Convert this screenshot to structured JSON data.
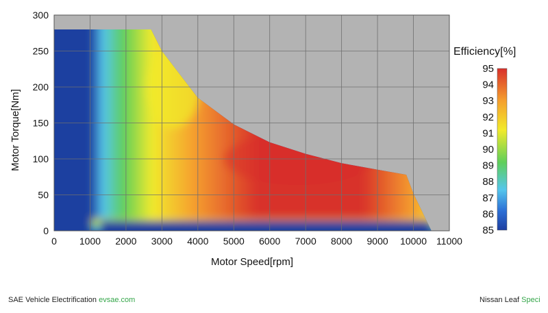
{
  "chart_data": {
    "type": "heatmap",
    "xlabel": "Motor Speed[rpm]",
    "ylabel": "Motor Torque[Nm]",
    "xlim": [
      0,
      11000
    ],
    "ylim": [
      0,
      300
    ],
    "x_ticks": [
      0,
      1000,
      2000,
      3000,
      4000,
      5000,
      6000,
      7000,
      8000,
      9000,
      10000,
      11000
    ],
    "y_ticks": [
      0,
      50,
      100,
      150,
      200,
      250,
      300
    ],
    "grid": true,
    "background_color": "#b3b3b3",
    "colorbar": {
      "title": "Efficiency[%]",
      "min": 85,
      "max": 95,
      "ticks": [
        85,
        86,
        87,
        88,
        89,
        90,
        91,
        92,
        93,
        94,
        95
      ],
      "colors": [
        "#1e3fa0",
        "#2c6fd6",
        "#55c6ec",
        "#5fcf5a",
        "#f2ea2c",
        "#f5a02e",
        "#d8302b"
      ]
    },
    "operating_envelope": {
      "max_torque_nm": 280,
      "constant_torque_until_rpm": 2700,
      "boundary": [
        [
          0,
          280
        ],
        [
          2700,
          280
        ],
        [
          3000,
          250
        ],
        [
          4000,
          185
        ],
        [
          5000,
          148
        ],
        [
          6000,
          123
        ],
        [
          7000,
          107
        ],
        [
          8000,
          94
        ],
        [
          9000,
          85
        ],
        [
          9800,
          78
        ],
        [
          10000,
          52
        ],
        [
          10500,
          0
        ]
      ]
    },
    "regions": [
      {
        "efficiency": "85-86",
        "description": "low speed below ~1000 rpm and low torque below ~20 Nm"
      },
      {
        "efficiency": "87-91",
        "description": "transition band around 1200-2500 rpm"
      },
      {
        "efficiency": "91-93",
        "description": "3000-4000 rpm mid torque"
      },
      {
        "efficiency": "94-95",
        "description": "peak around 6000-8000 rpm, 60-130 Nm"
      }
    ]
  },
  "footer": {
    "left_text": "SAE Vehicle Electrification",
    "left_link": "evsae.com",
    "right_text": "Nissan Leaf",
    "right_link": "Speci"
  }
}
